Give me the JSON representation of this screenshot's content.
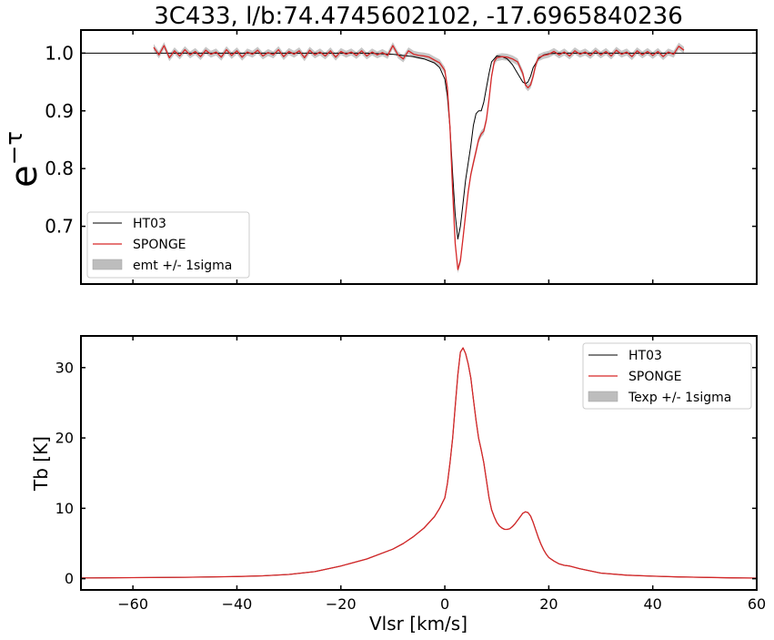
{
  "figure_title": "3C433, l/b:74.4745602102, -17.6965840236",
  "colors": {
    "ht03": "#000000",
    "sponge": "#d62728",
    "band": "#bdbdbd"
  },
  "chart_data": [
    {
      "type": "line",
      "ylabel_base": "e",
      "ylabel_exp": "−τ",
      "xlabel": "",
      "xlim": [
        -70,
        60
      ],
      "ylim": [
        0.6,
        1.04
      ],
      "yticks": [
        0.7,
        0.8,
        0.9,
        1.0
      ],
      "ytick_labels": [
        "0.7",
        "0.8",
        "0.9",
        "1.0"
      ],
      "xticks": [
        -60,
        -40,
        -20,
        0,
        20,
        40,
        60
      ],
      "grid": false,
      "legend_position": "lower-left",
      "legend": [
        "HT03",
        "SPONGE",
        "emt +/- 1sigma"
      ],
      "series": [
        {
          "name": "HT03",
          "x": [
            -70,
            -50,
            -30,
            -15,
            -10,
            -6,
            -4,
            -2,
            -1,
            0,
            0.5,
            1,
            1.5,
            2,
            2.5,
            3,
            3.5,
            4,
            4.5,
            5,
            5.5,
            6,
            6.5,
            7,
            7.5,
            8,
            8.5,
            9,
            10,
            11,
            12,
            13,
            14,
            15,
            15.5,
            16,
            16.5,
            17,
            18,
            19,
            20,
            22,
            30,
            45,
            60
          ],
          "y": [
            1.0,
            1.0,
            1.0,
            1.0,
            0.998,
            0.994,
            0.99,
            0.983,
            0.975,
            0.955,
            0.925,
            0.87,
            0.79,
            0.72,
            0.678,
            0.7,
            0.74,
            0.78,
            0.81,
            0.84,
            0.875,
            0.895,
            0.9,
            0.9,
            0.915,
            0.94,
            0.965,
            0.985,
            0.995,
            0.994,
            0.99,
            0.98,
            0.965,
            0.95,
            0.947,
            0.95,
            0.96,
            0.975,
            0.99,
            0.997,
            0.999,
            1.0,
            1.0,
            1.0,
            1.0
          ]
        },
        {
          "name": "SPONGE",
          "x": [
            -56,
            -55,
            -54,
            -53,
            -52,
            -51,
            -50,
            -49,
            -48,
            -47,
            -46,
            -45,
            -44,
            -43,
            -42,
            -41,
            -40,
            -39,
            -38,
            -37,
            -36,
            -35,
            -34,
            -33,
            -32,
            -31,
            -30,
            -29,
            -28,
            -27,
            -26,
            -25,
            -24,
            -23,
            -22,
            -21,
            -20,
            -19,
            -18,
            -17,
            -16,
            -15,
            -14,
            -13,
            -12,
            -11,
            -10,
            -9,
            -8,
            -7,
            -6,
            -5,
            -4,
            -3,
            -2,
            -1,
            0,
            0.5,
            1,
            1.5,
            2,
            2.5,
            3,
            3.5,
            4,
            4.5,
            5,
            5.5,
            6,
            6.5,
            7,
            7.5,
            8,
            8.5,
            9,
            9.5,
            10,
            11,
            12,
            13,
            14,
            15,
            15.5,
            16,
            16.5,
            17,
            17.5,
            18,
            19,
            20,
            21,
            22,
            23,
            24,
            25,
            26,
            27,
            28,
            29,
            30,
            31,
            32,
            33,
            34,
            35,
            36,
            37,
            38,
            39,
            40,
            41,
            42,
            43,
            44,
            45,
            46
          ],
          "y": [
            1.01,
            0.997,
            1.013,
            0.992,
            1.004,
            0.995,
            1.006,
            0.997,
            1.003,
            0.994,
            1.005,
            0.998,
            1.002,
            0.993,
            1.006,
            0.996,
            1.004,
            0.993,
            1.002,
            0.998,
            1.005,
            0.995,
            1.001,
            0.997,
            1.006,
            0.994,
            1.003,
            0.998,
            1.004,
            0.992,
            1.005,
            0.997,
            1.002,
            0.995,
            1.004,
            0.993,
            1.003,
            0.998,
            1.002,
            0.996,
            1.004,
            0.995,
            1.002,
            0.997,
            1.001,
            0.996,
            1.013,
            0.997,
            0.99,
            1.004,
            0.998,
            0.996,
            0.995,
            0.993,
            0.988,
            0.983,
            0.97,
            0.94,
            0.87,
            0.76,
            0.67,
            0.625,
            0.64,
            0.68,
            0.72,
            0.76,
            0.79,
            0.81,
            0.83,
            0.85,
            0.86,
            0.865,
            0.885,
            0.92,
            0.96,
            0.985,
            0.992,
            0.994,
            0.993,
            0.99,
            0.985,
            0.965,
            0.945,
            0.94,
            0.945,
            0.96,
            0.98,
            0.992,
            0.996,
            0.998,
            1.003,
            0.997,
            1.002,
            0.995,
            1.004,
            0.998,
            1.002,
            0.996,
            1.004,
            0.997,
            1.003,
            0.995,
            1.005,
            0.998,
            1.002,
            0.994,
            1.004,
            0.997,
            1.003,
            0.996,
            1.003,
            0.994,
            1.002,
            0.998,
            1.012,
            1.005
          ]
        }
      ]
    },
    {
      "type": "line",
      "ylabel": "Tb [K]",
      "xlabel": "Vlsr [km/s]",
      "xlim": [
        -70,
        60
      ],
      "ylim": [
        -1.6,
        34.5
      ],
      "yticks": [
        0,
        10,
        20,
        30
      ],
      "ytick_labels": [
        "0",
        "10",
        "20",
        "30"
      ],
      "xticks": [
        -60,
        -40,
        -20,
        0,
        20,
        40,
        60
      ],
      "xtick_labels": [
        "−60",
        "−40",
        "−20",
        "0",
        "20",
        "40",
        "60"
      ],
      "grid": false,
      "legend_position": "upper-right",
      "legend": [
        "HT03",
        "SPONGE",
        "Texp +/- 1sigma"
      ],
      "series": [
        {
          "name": "HT03",
          "x": [
            -70,
            -60,
            -50,
            -40,
            -35,
            -30,
            -25,
            -20,
            -15,
            -10,
            -8,
            -6,
            -4,
            -2,
            -1,
            0,
            0.5,
            1,
            1.5,
            2,
            2.5,
            3,
            3.5,
            4,
            4.5,
            5,
            5.5,
            6,
            6.5,
            7,
            7.5,
            8,
            8.5,
            9,
            9.5,
            10,
            10.5,
            11,
            11.5,
            12,
            12.5,
            13,
            13.5,
            14,
            14.5,
            15,
            15.5,
            16,
            16.5,
            17,
            17.5,
            18,
            18.5,
            19,
            19.5,
            20,
            21,
            22,
            23,
            24,
            25,
            26,
            28,
            30,
            35,
            40,
            45,
            50,
            55,
            60
          ],
          "y": [
            0.1,
            0.15,
            0.2,
            0.3,
            0.4,
            0.6,
            1.0,
            1.8,
            2.8,
            4.2,
            5.0,
            6.0,
            7.2,
            8.8,
            10.0,
            11.5,
            13.5,
            16.5,
            20.0,
            24.5,
            29.0,
            32.2,
            32.8,
            32.0,
            30.5,
            28.5,
            25.5,
            22.5,
            20.0,
            18.3,
            16.5,
            14.0,
            11.5,
            9.8,
            8.8,
            8.0,
            7.5,
            7.2,
            7.0,
            7.0,
            7.1,
            7.4,
            7.8,
            8.3,
            8.8,
            9.3,
            9.5,
            9.4,
            8.9,
            8.0,
            6.9,
            5.8,
            4.9,
            4.1,
            3.5,
            3.0,
            2.5,
            2.1,
            1.9,
            1.8,
            1.6,
            1.4,
            1.1,
            0.8,
            0.5,
            0.35,
            0.25,
            0.18,
            0.12,
            0.08
          ]
        },
        {
          "name": "SPONGE",
          "x": [
            -70,
            -60,
            -50,
            -40,
            -35,
            -30,
            -25,
            -20,
            -15,
            -10,
            -8,
            -6,
            -4,
            -2,
            -1,
            0,
            0.5,
            1,
            1.5,
            2,
            2.5,
            3,
            3.5,
            4,
            4.5,
            5,
            5.5,
            6,
            6.5,
            7,
            7.5,
            8,
            8.5,
            9,
            9.5,
            10,
            10.5,
            11,
            11.5,
            12,
            12.5,
            13,
            13.5,
            14,
            14.5,
            15,
            15.5,
            16,
            16.5,
            17,
            17.5,
            18,
            18.5,
            19,
            19.5,
            20,
            21,
            22,
            23,
            24,
            25,
            26,
            28,
            30,
            35,
            40,
            45,
            50,
            55,
            60
          ],
          "y": [
            0.1,
            0.15,
            0.2,
            0.3,
            0.4,
            0.6,
            1.0,
            1.8,
            2.8,
            4.2,
            5.0,
            6.0,
            7.2,
            8.8,
            10.0,
            11.5,
            13.5,
            16.5,
            20.0,
            24.5,
            29.0,
            32.2,
            32.8,
            32.0,
            30.5,
            28.5,
            25.5,
            22.5,
            20.0,
            18.3,
            16.5,
            14.0,
            11.5,
            9.8,
            8.8,
            8.0,
            7.5,
            7.2,
            7.0,
            7.0,
            7.1,
            7.4,
            7.8,
            8.3,
            8.8,
            9.3,
            9.5,
            9.4,
            8.9,
            8.0,
            6.9,
            5.8,
            4.9,
            4.1,
            3.5,
            3.0,
            2.5,
            2.1,
            1.9,
            1.8,
            1.6,
            1.4,
            1.1,
            0.8,
            0.5,
            0.35,
            0.25,
            0.18,
            0.12,
            0.08
          ]
        }
      ]
    }
  ]
}
